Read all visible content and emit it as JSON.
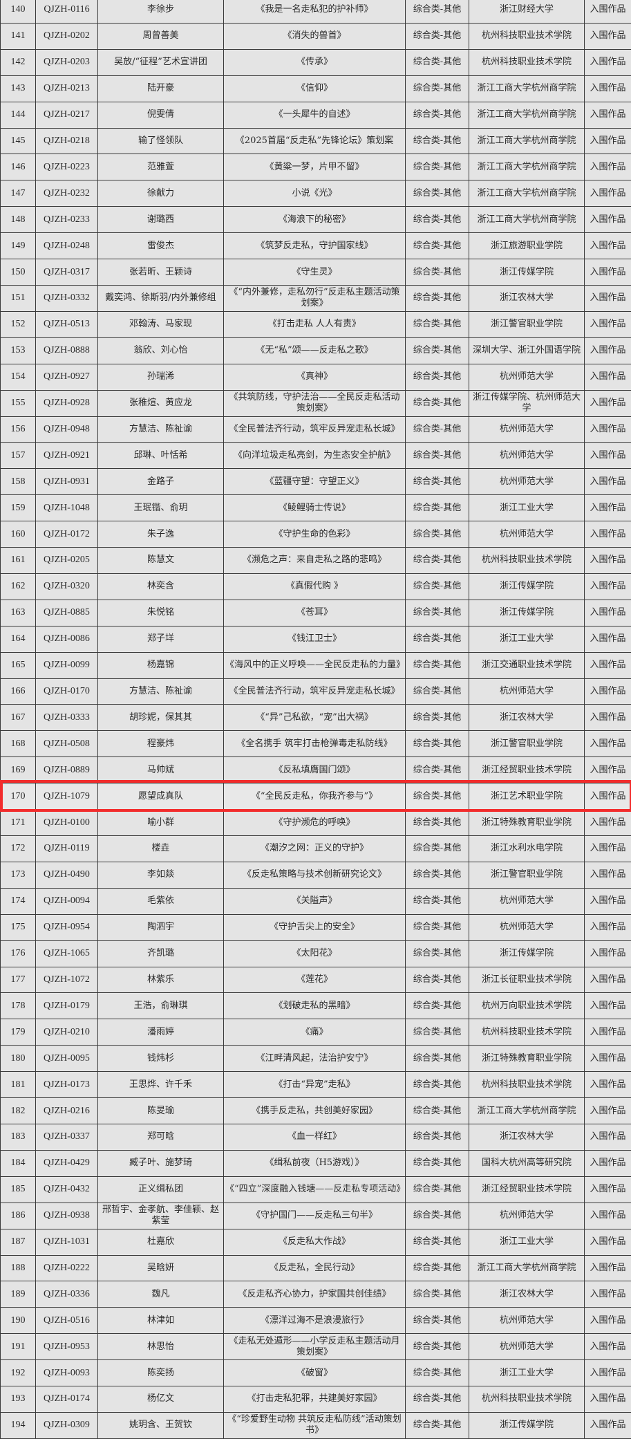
{
  "table": {
    "highlight_color": "#f22c2c",
    "highlighted_row": "170",
    "rows": [
      [
        "140",
        "QJZH-0116",
        "李徐步",
        "《我是一名走私犯的护补师》",
        "综合类-其他",
        "浙江财经大学",
        "入围作品"
      ],
      [
        "141",
        "QJZH-0202",
        "周曾善美",
        "《消失的兽首》",
        "综合类-其他",
        "杭州科技职业技术学院",
        "入围作品"
      ],
      [
        "142",
        "QJZH-0203",
        "吴放/“征程”艺术宣讲团",
        "《传承》",
        "综合类-其他",
        "杭州科技职业技术学院",
        "入围作品"
      ],
      [
        "143",
        "QJZH-0213",
        "陆开豪",
        "《信仰》",
        "综合类-其他",
        "浙江工商大学杭州商学院",
        "入围作品"
      ],
      [
        "144",
        "QJZH-0217",
        "倪雯倩",
        "《一头犀牛的自述》",
        "综合类-其他",
        "浙江工商大学杭州商学院",
        "入围作品"
      ],
      [
        "145",
        "QJZH-0218",
        "输了怪领队",
        "《2025首届“反走私”先锋论坛》策划案",
        "综合类-其他",
        "浙江工商大学杭州商学院",
        "入围作品"
      ],
      [
        "146",
        "QJZH-0223",
        "范雅萱",
        "《黄粱一梦，片甲不留》",
        "综合类-其他",
        "浙江工商大学杭州商学院",
        "入围作品"
      ],
      [
        "147",
        "QJZH-0232",
        "徐献力",
        "小说《光》",
        "综合类-其他",
        "浙江工商大学杭州商学院",
        "入围作品"
      ],
      [
        "148",
        "QJZH-0233",
        "谢璐西",
        "《海浪下的秘密》",
        "综合类-其他",
        "浙江工商大学杭州商学院",
        "入围作品"
      ],
      [
        "149",
        "QJZH-0248",
        "雷俊杰",
        "《筑梦反走私，守护国家线》",
        "综合类-其他",
        "浙江旅游职业学院",
        "入围作品"
      ],
      [
        "150",
        "QJZH-0317",
        "张若昕、王颖诗",
        "《守生灵》",
        "综合类-其他",
        "浙江传媒学院",
        "入围作品"
      ],
      [
        "151",
        "QJZH-0332",
        "戴奕鸿、徐斯羽/内外兼修组",
        "《“内外兼修，走私勿行”反走私主题活动策划案》",
        "综合类-其他",
        "浙江农林大学",
        "入围作品"
      ],
      [
        "152",
        "QJZH-0513",
        "邓翰涛、马家现",
        "《打击走私 人人有责》",
        "综合类-其他",
        "浙江警官职业学院",
        "入围作品"
      ],
      [
        "153",
        "QJZH-0888",
        "翁欣、刘心怡",
        "《无“私”颂——反走私之歌》",
        "综合类-其他",
        "深圳大学、浙江外国语学院",
        "入围作品"
      ],
      [
        "154",
        "QJZH-0927",
        "孙瑞浠",
        "《真神》",
        "综合类-其他",
        "杭州师范大学",
        "入围作品"
      ],
      [
        "155",
        "QJZH-0928",
        "张稚煊、黄应龙",
        "《共筑防线，守护法治——全民反走私活动策划案》",
        "综合类-其他",
        "浙江传媒学院、杭州师范大学",
        "入围作品"
      ],
      [
        "156",
        "QJZH-0948",
        "方慧洁、陈祉谕",
        "《全民普法齐行动，筑牢反异宠走私长城》",
        "综合类-其他",
        "杭州师范大学",
        "入围作品"
      ],
      [
        "157",
        "QJZH-0921",
        "邱琳、叶恬希",
        "《向洋垃圾走私亮剑，为生态安全护航》",
        "综合类-其他",
        "杭州师范大学",
        "入围作品"
      ],
      [
        "158",
        "QJZH-0931",
        "金路子",
        "《蓝疆守望：守望正义》",
        "综合类-其他",
        "杭州师范大学",
        "入围作品"
      ],
      [
        "159",
        "QJZH-1048",
        "王珉锴、俞玥",
        "《鲮鲤骑士传说》",
        "综合类-其他",
        "浙江工业大学",
        "入围作品"
      ],
      [
        "160",
        "QJZH-0172",
        "朱子逸",
        "《守护生命的色彩》",
        "综合类-其他",
        "杭州师范大学",
        "入围作品"
      ],
      [
        "161",
        "QJZH-0205",
        "陈慧文",
        "《濒危之声：来自走私之路的悲鸣》",
        "综合类-其他",
        "杭州科技职业技术学院",
        "入围作品"
      ],
      [
        "162",
        "QJZH-0320",
        "林奕含",
        "《真假代购 》",
        "综合类-其他",
        "浙江传媒学院",
        "入围作品"
      ],
      [
        "163",
        "QJZH-0885",
        "朱悦铭",
        "《苍耳》",
        "综合类-其他",
        "浙江传媒学院",
        "入围作品"
      ],
      [
        "164",
        "QJZH-0086",
        "郑子垟",
        "《钱江卫士》",
        "综合类-其他",
        "浙江工业大学",
        "入围作品"
      ],
      [
        "165",
        "QJZH-0099",
        "杨嘉锦",
        "《海风中的正义呼唤——全民反走私的力量》",
        "综合类-其他",
        "浙江交通职业技术学院",
        "入围作品"
      ],
      [
        "166",
        "QJZH-0170",
        "方慧洁、陈祉谕",
        "《全民普法齐行动，筑牢反异宠走私长城》",
        "综合类-其他",
        "杭州师范大学",
        "入围作品"
      ],
      [
        "167",
        "QJZH-0333",
        "胡珍妮，保其其",
        "《“异”己私欲，“宠”出大祸》",
        "综合类-其他",
        "浙江农林大学",
        "入围作品"
      ],
      [
        "168",
        "QJZH-0508",
        "程豪炜",
        "《全名携手 筑牢打击枪弹毒走私防线》",
        "综合类-其他",
        "浙江警官职业学院",
        "入围作品"
      ],
      [
        "169",
        "QJZH-0889",
        "马帅斌",
        "《反私填膺国门颂》",
        "综合类-其他",
        "浙江经贸职业技术学院",
        "入围作品"
      ],
      [
        "170",
        "QJZH-1079",
        "愿望成真队",
        "《“全民反走私，你我齐参与”》",
        "综合类-其他",
        "浙江艺术职业学院",
        "入围作品"
      ],
      [
        "171",
        "QJZH-0100",
        "喻小群",
        "《守护濒危的呼唤》",
        "综合类-其他",
        "浙江特殊教育职业学院",
        "入围作品"
      ],
      [
        "172",
        "QJZH-0119",
        "楼垚",
        "《潮汐之网：正义的守护》",
        "综合类-其他",
        "浙江水利水电学院",
        "入围作品"
      ],
      [
        "173",
        "QJZH-0490",
        "李如燚",
        "《反走私策略与技术创新研究论文》",
        "综合类-其他",
        "浙江警官职业学院",
        "入围作品"
      ],
      [
        "174",
        "QJZH-0094",
        "毛紫依",
        "《关隘声》",
        "综合类-其他",
        "杭州师范大学",
        "入围作品"
      ],
      [
        "175",
        "QJZH-0954",
        "陶泗宇",
        "《守护舌尖上的安全》",
        "综合类-其他",
        "杭州师范大学",
        "入围作品"
      ],
      [
        "176",
        "QJZH-1065",
        "齐凯璐",
        "《太阳花》",
        "综合类-其他",
        "浙江传媒学院",
        "入围作品"
      ],
      [
        "177",
        "QJZH-1072",
        "林紫乐",
        "《莲花》",
        "综合类-其他",
        "浙江长征职业技术学院",
        "入围作品"
      ],
      [
        "178",
        "QJZH-0179",
        "王浩，俞琳琪",
        "《划破走私的黑暗》",
        "综合类-其他",
        "杭州万向职业技术学院",
        "入围作品"
      ],
      [
        "179",
        "QJZH-0210",
        "潘雨婷",
        "《痛》",
        "综合类-其他",
        "杭州科技职业技术学院",
        "入围作品"
      ],
      [
        "180",
        "QJZH-0095",
        "钱炜杉",
        "《江畔清风起，法治护安宁》",
        "综合类-其他",
        "浙江特殊教育职业学院",
        "入围作品"
      ],
      [
        "181",
        "QJZH-0173",
        "王思烨、许千禾",
        "《打击“异宠”走私》",
        "综合类-其他",
        "杭州科技职业技术学院",
        "入围作品"
      ],
      [
        "182",
        "QJZH-0216",
        "陈旻瑜",
        "《携手反走私，共创美好家园》",
        "综合类-其他",
        "浙江工商大学杭州商学院",
        "入围作品"
      ],
      [
        "183",
        "QJZH-0337",
        "郑可晗",
        "《血一样红》",
        "综合类-其他",
        "浙江农林大学",
        "入围作品"
      ],
      [
        "184",
        "QJZH-0429",
        "臧子叶、施梦琦",
        "《缉私前夜（H5游戏）》",
        "综合类-其他",
        "国科大杭州高等研究院",
        "入围作品"
      ],
      [
        "185",
        "QJZH-0432",
        "正义缉私团",
        "《“四立”深度融入钱塘——反走私专项活动》",
        "综合类-其他",
        "浙江经贸职业技术学院",
        "入围作品"
      ],
      [
        "186",
        "QJZH-0938",
        "邢哲宇、金孝航、李佳颖、赵紫莹",
        "《守护国门——反走私三句半》",
        "综合类-其他",
        "杭州师范大学",
        "入围作品"
      ],
      [
        "187",
        "QJZH-1031",
        "杜嘉欣",
        "《反走私大作战》",
        "综合类-其他",
        "浙江工业大学",
        "入围作品"
      ],
      [
        "188",
        "QJZH-0222",
        "吴晗妍",
        "《反走私，全民行动》",
        "综合类-其他",
        "浙江工商大学杭州商学院",
        "入围作品"
      ],
      [
        "189",
        "QJZH-0336",
        "魏凡",
        "《反走私齐心协力，护家国共创佳绩》",
        "综合类-其他",
        "浙江农林大学",
        "入围作品"
      ],
      [
        "190",
        "QJZH-0516",
        "林津如",
        "《漂洋过海不是浪漫旅行》",
        "综合类-其他",
        "杭州师范大学",
        "入围作品"
      ],
      [
        "191",
        "QJZH-0953",
        "林思怡",
        "《走私无处遁形——小学反走私主题活动月策划案》",
        "综合类-其他",
        "杭州师范大学",
        "入围作品"
      ],
      [
        "192",
        "QJZH-0093",
        "陈奕扬",
        "《破窗》",
        "综合类-其他",
        "浙江工业大学",
        "入围作品"
      ],
      [
        "193",
        "QJZH-0174",
        "杨亿文",
        "《打击走私犯罪，共建美好家园》",
        "综合类-其他",
        "杭州科技职业技术学院",
        "入围作品"
      ],
      [
        "194",
        "QJZH-0309",
        "姚玥含、王贺钦",
        "《“珍爱野生动物 共筑反走私防线”活动策划书》",
        "综合类-其他",
        "浙江传媒学院",
        "入围作品"
      ]
    ]
  }
}
